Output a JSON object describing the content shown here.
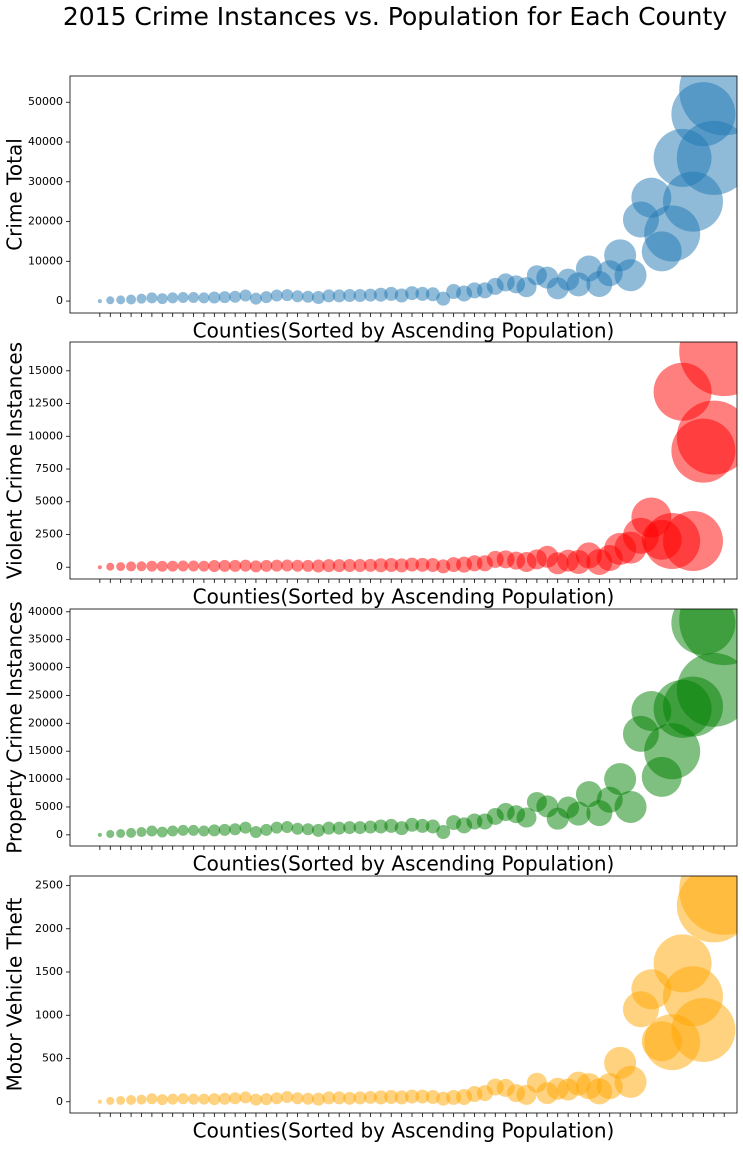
{
  "title": "2015 Crime Instances vs. Population for Each County",
  "chart_data": [
    {
      "type": "scatter",
      "xlabel": "Counties(Sorted by Ascending Population)",
      "ylabel": "Crime Total",
      "color": "#1f77b4",
      "categories": [
        null,
        null,
        null,
        null,
        null,
        null,
        null,
        null,
        null,
        null,
        null,
        null,
        null,
        null,
        null,
        null,
        null,
        null,
        null,
        null,
        null,
        null,
        null,
        null,
        null,
        null,
        null,
        null,
        null,
        null,
        null,
        null,
        null,
        null,
        null,
        null,
        null,
        null,
        null,
        null,
        null,
        null,
        null,
        null,
        null,
        null,
        null,
        null,
        null,
        null,
        null,
        null,
        null,
        null,
        null,
        null,
        null,
        null,
        null,
        null,
        null
      ],
      "values": [
        0,
        200,
        300,
        400,
        600,
        800,
        600,
        800,
        900,
        900,
        800,
        900,
        1000,
        1100,
        1400,
        600,
        1000,
        1400,
        1500,
        1200,
        1100,
        900,
        1300,
        1300,
        1400,
        1400,
        1500,
        1600,
        1800,
        1400,
        2000,
        1800,
        1700,
        600,
        2400,
        1900,
        2700,
        2700,
        3700,
        4700,
        4200,
        3500,
        6500,
        5900,
        3200,
        5400,
        4200,
        8200,
        4300,
        7000,
        11500,
        6500,
        20500,
        26000,
        12500,
        17000,
        36000,
        25000,
        47000,
        36000,
        53000
      ],
      "sizes": [
        4,
        16,
        20,
        25,
        25,
        30,
        30,
        30,
        30,
        30,
        30,
        36,
        36,
        36,
        36,
        36,
        36,
        36,
        36,
        36,
        36,
        42,
        42,
        42,
        42,
        42,
        42,
        49,
        49,
        49,
        49,
        49,
        49,
        49,
        56,
        64,
        64,
        64,
        72,
        81,
        81,
        100,
        100,
        121,
        121,
        121,
        144,
        169,
        169,
        169,
        256,
        256,
        324,
        400,
        400,
        784,
        841,
        900,
        1024,
        1369,
        2025
      ],
      "ylim": [
        -3000,
        56600
      ],
      "yticks": [
        0,
        10000,
        20000,
        30000,
        40000,
        50000
      ]
    },
    {
      "type": "scatter",
      "xlabel": "Counties(Sorted by Ascending Population)",
      "ylabel": "Violent Crime Instances",
      "color": "#ff0000",
      "categories": [
        null,
        null,
        null,
        null,
        null,
        null,
        null,
        null,
        null,
        null,
        null,
        null,
        null,
        null,
        null,
        null,
        null,
        null,
        null,
        null,
        null,
        null,
        null,
        null,
        null,
        null,
        null,
        null,
        null,
        null,
        null,
        null,
        null,
        null,
        null,
        null,
        null,
        null,
        null,
        null,
        null,
        null,
        null,
        null,
        null,
        null,
        null,
        null,
        null,
        null,
        null,
        null,
        null,
        null,
        null,
        null,
        null,
        null,
        null,
        null,
        null
      ],
      "values": [
        0,
        40,
        50,
        60,
        70,
        80,
        70,
        80,
        90,
        90,
        80,
        90,
        100,
        100,
        120,
        60,
        100,
        120,
        130,
        110,
        100,
        90,
        120,
        120,
        130,
        130,
        140,
        150,
        170,
        140,
        200,
        180,
        170,
        60,
        200,
        200,
        300,
        300,
        600,
        600,
        500,
        400,
        600,
        800,
        300,
        500,
        400,
        900,
        400,
        700,
        1400,
        1500,
        2400,
        3800,
        2100,
        2000,
        13400,
        2000,
        8900,
        9900,
        16500
      ],
      "sizes": [
        4,
        16,
        20,
        25,
        25,
        30,
        30,
        30,
        30,
        30,
        30,
        36,
        36,
        36,
        36,
        36,
        36,
        36,
        36,
        36,
        36,
        42,
        42,
        42,
        42,
        42,
        42,
        49,
        49,
        49,
        49,
        49,
        49,
        49,
        56,
        64,
        64,
        64,
        72,
        81,
        81,
        100,
        100,
        121,
        121,
        121,
        144,
        169,
        169,
        169,
        256,
        256,
        324,
        400,
        400,
        784,
        841,
        900,
        1024,
        1369,
        2025
      ],
      "ylim": [
        -900,
        17200
      ],
      "yticks": [
        0,
        2500,
        5000,
        7500,
        10000,
        12500,
        15000
      ]
    },
    {
      "type": "scatter",
      "xlabel": "Counties(Sorted by Ascending Population)",
      "ylabel": "Property Crime Instances",
      "color": "#008000",
      "categories": [
        null,
        null,
        null,
        null,
        null,
        null,
        null,
        null,
        null,
        null,
        null,
        null,
        null,
        null,
        null,
        null,
        null,
        null,
        null,
        null,
        null,
        null,
        null,
        null,
        null,
        null,
        null,
        null,
        null,
        null,
        null,
        null,
        null,
        null,
        null,
        null,
        null,
        null,
        null,
        null,
        null,
        null,
        null,
        null,
        null,
        null,
        null,
        null,
        null,
        null,
        null,
        null,
        null,
        null,
        null,
        null,
        null,
        null,
        null,
        null,
        null
      ],
      "values": [
        0,
        150,
        250,
        350,
        500,
        700,
        500,
        700,
        800,
        800,
        700,
        800,
        900,
        1000,
        1300,
        500,
        900,
        1300,
        1400,
        1100,
        1000,
        800,
        1200,
        1200,
        1300,
        1300,
        1400,
        1500,
        1600,
        1200,
        1800,
        1600,
        1500,
        500,
        2200,
        1700,
        2400,
        2400,
        3300,
        4100,
        3700,
        3100,
        5900,
        5100,
        2900,
        4900,
        3800,
        7300,
        3900,
        6300,
        10000,
        5000,
        18100,
        22200,
        10400,
        15000,
        22600,
        23000,
        38000,
        26000,
        38500
      ],
      "sizes": [
        4,
        16,
        20,
        25,
        25,
        30,
        30,
        30,
        30,
        30,
        30,
        36,
        36,
        36,
        36,
        36,
        36,
        36,
        36,
        36,
        36,
        42,
        42,
        42,
        42,
        42,
        42,
        49,
        49,
        49,
        49,
        49,
        49,
        49,
        56,
        64,
        64,
        64,
        72,
        81,
        81,
        100,
        100,
        121,
        121,
        121,
        144,
        169,
        169,
        169,
        256,
        256,
        324,
        400,
        400,
        784,
        841,
        900,
        1024,
        1369,
        2025
      ],
      "ylim": [
        -2000,
        40500
      ],
      "yticks": [
        0,
        5000,
        10000,
        15000,
        20000,
        25000,
        30000,
        35000,
        40000
      ]
    },
    {
      "type": "scatter",
      "xlabel": "Counties(Sorted by Ascending Population)",
      "ylabel": "Motor Vehicle Theft",
      "color": "#ffa500",
      "categories": [
        null,
        null,
        null,
        null,
        null,
        null,
        null,
        null,
        null,
        null,
        null,
        null,
        null,
        null,
        null,
        null,
        null,
        null,
        null,
        null,
        null,
        null,
        null,
        null,
        null,
        null,
        null,
        null,
        null,
        null,
        null,
        null,
        null,
        null,
        null,
        null,
        null,
        null,
        null,
        null,
        null,
        null,
        null,
        null,
        null,
        null,
        null,
        null,
        null,
        null,
        null,
        null,
        null,
        null,
        null,
        null,
        null,
        null,
        null,
        null,
        null
      ],
      "values": [
        0,
        10,
        15,
        20,
        25,
        35,
        25,
        30,
        35,
        30,
        30,
        30,
        35,
        40,
        50,
        25,
        30,
        40,
        55,
        40,
        35,
        30,
        45,
        45,
        40,
        45,
        50,
        50,
        55,
        50,
        60,
        60,
        55,
        35,
        50,
        55,
        90,
        100,
        170,
        160,
        100,
        80,
        220,
        100,
        150,
        140,
        210,
        180,
        120,
        180,
        450,
        230,
        1070,
        1300,
        700,
        690,
        1600,
        1220,
        830,
        2270,
        2450
      ],
      "sizes": [
        4,
        16,
        20,
        25,
        25,
        30,
        30,
        30,
        30,
        30,
        30,
        36,
        36,
        36,
        36,
        36,
        36,
        36,
        36,
        36,
        36,
        42,
        42,
        42,
        42,
        42,
        42,
        49,
        49,
        49,
        49,
        49,
        49,
        49,
        56,
        64,
        64,
        64,
        72,
        81,
        81,
        100,
        100,
        121,
        121,
        121,
        144,
        169,
        169,
        169,
        256,
        256,
        324,
        400,
        400,
        784,
        841,
        900,
        1024,
        1369,
        2025
      ],
      "ylim": [
        -130,
        2610
      ],
      "yticks": [
        0,
        500,
        1000,
        1500,
        2000,
        2500
      ]
    }
  ]
}
